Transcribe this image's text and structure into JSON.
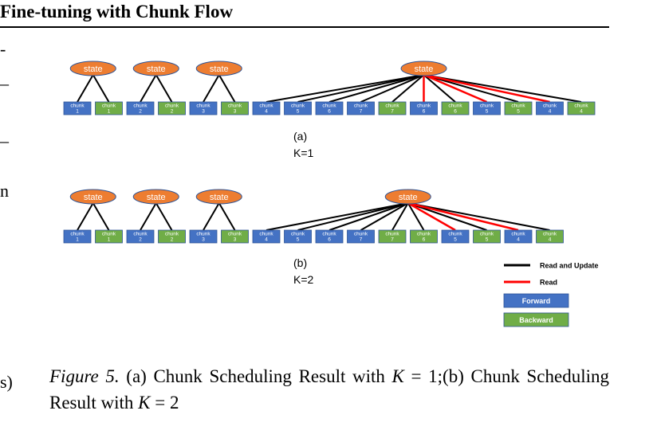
{
  "header": {
    "title": "Fine-tuning with Chunk Flow"
  },
  "left_fragments": [
    "-",
    "–",
    "–",
    "n",
    "s)"
  ],
  "diagram": {
    "colors": {
      "state": "#ED7D31",
      "forward": "#4472C4",
      "backward": "#70AD47",
      "read_update": "#000000",
      "read": "#FF0000"
    },
    "state_label": "state",
    "chunk_label": "chunk",
    "panels": [
      {
        "id": "a",
        "label": "(a)",
        "k_label": "K=1",
        "chunks": [
          {
            "type": "forward",
            "num": "1"
          },
          {
            "type": "backward",
            "num": "1"
          },
          {
            "type": "forward",
            "num": "2"
          },
          {
            "type": "backward",
            "num": "2"
          },
          {
            "type": "forward",
            "num": "3"
          },
          {
            "type": "backward",
            "num": "3"
          },
          {
            "type": "forward",
            "num": "4"
          },
          {
            "type": "forward",
            "num": "5"
          },
          {
            "type": "forward",
            "num": "6"
          },
          {
            "type": "forward",
            "num": "7"
          },
          {
            "type": "backward",
            "num": "7"
          },
          {
            "type": "forward",
            "num": "6"
          },
          {
            "type": "backward",
            "num": "6"
          },
          {
            "type": "forward",
            "num": "5"
          },
          {
            "type": "backward",
            "num": "5"
          },
          {
            "type": "forward",
            "num": "4"
          },
          {
            "type": "backward",
            "num": "4"
          }
        ]
      },
      {
        "id": "b",
        "label": "(b)",
        "k_label": "K=2",
        "chunks": [
          {
            "type": "forward",
            "num": "1"
          },
          {
            "type": "backward",
            "num": "1"
          },
          {
            "type": "forward",
            "num": "2"
          },
          {
            "type": "backward",
            "num": "2"
          },
          {
            "type": "forward",
            "num": "3"
          },
          {
            "type": "backward",
            "num": "3"
          },
          {
            "type": "forward",
            "num": "4"
          },
          {
            "type": "forward",
            "num": "5"
          },
          {
            "type": "forward",
            "num": "6"
          },
          {
            "type": "forward",
            "num": "7"
          },
          {
            "type": "backward",
            "num": "7"
          },
          {
            "type": "backward",
            "num": "6"
          },
          {
            "type": "forward",
            "num": "5"
          },
          {
            "type": "backward",
            "num": "5"
          },
          {
            "type": "forward",
            "num": "4"
          },
          {
            "type": "backward",
            "num": "4"
          }
        ]
      }
    ],
    "legend": [
      {
        "kind": "line",
        "color": "#000000",
        "label": "Read and Update"
      },
      {
        "kind": "line",
        "color": "#FF0000",
        "label": "Read"
      },
      {
        "kind": "box",
        "color": "#4472C4",
        "label": "Forward"
      },
      {
        "kind": "box",
        "color": "#70AD47",
        "label": "Backward"
      }
    ]
  },
  "caption": {
    "figure": "Figure 5.",
    "text_a": " (a) Chunk Scheduling Result with ",
    "var": "K",
    "eq_a": " = 1;",
    "text_b": "(b) Chunk Scheduling Result with ",
    "eq_b": " = 2"
  }
}
